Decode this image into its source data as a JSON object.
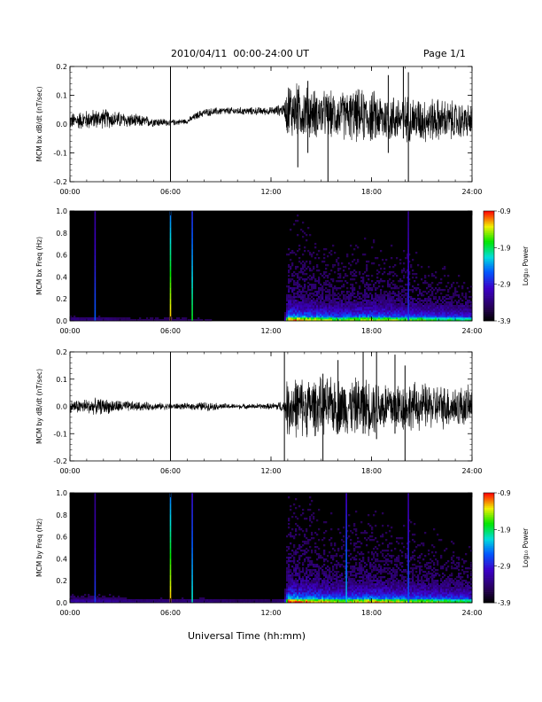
{
  "header": {
    "title": "2010/04/11  00:00-24:00 UT",
    "page_label": "Page 1/1"
  },
  "footer": {
    "xlabel": "Universal Time (hh:mm)"
  },
  "colorbar": {
    "label": "Log₁₀ Power",
    "ticks": [
      "-0.9",
      "-1.9",
      "-2.9",
      "-3.9"
    ],
    "range": [
      -3.9,
      -0.9
    ]
  },
  "chart_data": [
    {
      "type": "line",
      "title": "",
      "ylabel": "MCM bx dB/dt (nT/sec)",
      "xlabel": "",
      "xlim": [
        0,
        24
      ],
      "ylim": [
        -0.2,
        0.2
      ],
      "x_ticks": [
        "00:00",
        "06:00",
        "12:00",
        "18:00",
        "24:00"
      ],
      "y_ticks": [
        "-0.2",
        "-0.1",
        "0.0",
        "0.1",
        "0.2"
      ],
      "series": [
        {
          "x_hours": [
            0,
            1,
            2,
            3,
            4,
            5,
            6,
            7,
            7.6,
            8,
            9,
            10,
            11,
            12,
            12.8,
            13,
            14,
            15,
            16,
            17,
            18,
            19,
            20,
            21,
            22,
            23,
            24
          ],
          "baseline": [
            0.01,
            0.015,
            0.02,
            0.015,
            0.01,
            0.008,
            0.005,
            0.01,
            0.03,
            0.04,
            0.045,
            0.045,
            0.045,
            0.045,
            0.05,
            0.05,
            0.04,
            0.035,
            0.03,
            0.03,
            0.025,
            0.02,
            0.02,
            0.015,
            0.015,
            0.01,
            0.01
          ],
          "envelope": [
            0.025,
            0.03,
            0.03,
            0.025,
            0.02,
            0.015,
            0.01,
            0.008,
            0.012,
            0.012,
            0.012,
            0.012,
            0.012,
            0.012,
            0.02,
            0.09,
            0.08,
            0.07,
            0.07,
            0.08,
            0.08,
            0.075,
            0.07,
            0.07,
            0.065,
            0.06,
            0.05
          ],
          "spikes": [
            {
              "x": 6.0,
              "ymin": -0.2,
              "ymax": 0.2
            },
            {
              "x": 15.4,
              "ymin": -0.2,
              "ymax": 0.08
            },
            {
              "x": 20.2,
              "ymin": -0.2,
              "ymax": 0.18
            },
            {
              "x": 19.9,
              "ymin": -0.05,
              "ymax": 0.2
            },
            {
              "x": 19.0,
              "ymin": -0.1,
              "ymax": 0.17
            },
            {
              "x": 14.2,
              "ymin": -0.1,
              "ymax": 0.15
            },
            {
              "x": 13.6,
              "ymin": -0.15,
              "ymax": 0.12
            }
          ]
        }
      ]
    },
    {
      "type": "heatmap",
      "title": "",
      "ylabel": "MCM bx Freq (Hz)",
      "xlabel": "",
      "xlim": [
        0,
        24
      ],
      "ylim": [
        0,
        1.0
      ],
      "x_ticks": [
        "00:00",
        "06:00",
        "12:00",
        "18:00",
        "24:00"
      ],
      "y_ticks": [
        "0.0",
        "0.2",
        "0.4",
        "0.6",
        "0.8",
        "1.0"
      ],
      "value_range": [
        -3.9,
        -0.9
      ],
      "activity_x_hours": [
        0,
        2,
        4,
        6,
        8,
        10,
        12,
        12.8,
        13,
        14,
        16,
        18,
        20,
        22,
        24
      ],
      "activity_level": [
        0.15,
        0.15,
        0.1,
        0.12,
        0.1,
        0.08,
        0.08,
        0.1,
        0.75,
        0.7,
        0.6,
        0.65,
        0.6,
        0.55,
        0.5
      ],
      "vertical_lines": [
        {
          "x": 1.5,
          "level": 0.45
        },
        {
          "x": 6.0,
          "level": 0.9
        },
        {
          "x": 7.3,
          "level": 0.7
        },
        {
          "x": 20.2,
          "level": 0.4
        }
      ]
    },
    {
      "type": "line",
      "title": "",
      "ylabel": "MCM by dB/dt (nT/sec)",
      "xlabel": "",
      "xlim": [
        0,
        24
      ],
      "ylim": [
        -0.2,
        0.2
      ],
      "x_ticks": [
        "00:00",
        "06:00",
        "12:00",
        "18:00",
        "24:00"
      ],
      "y_ticks": [
        "-0.2",
        "-0.1",
        "0.0",
        "0.1",
        "0.2"
      ],
      "series": [
        {
          "x_hours": [
            0,
            1,
            2,
            3,
            4,
            5,
            6,
            7,
            8,
            9,
            10,
            11,
            12,
            12.8,
            13,
            14,
            15,
            16,
            17,
            18,
            19,
            20,
            21,
            22,
            23,
            24
          ],
          "baseline": [
            0.0,
            0.0,
            0.0,
            0.0,
            0.0,
            0.0,
            0.0,
            0.0,
            0.0,
            0.0,
            0.0,
            0.0,
            0.0,
            0.0,
            0.0,
            0.0,
            0.0,
            0.0,
            0.0,
            0.0,
            0.0,
            0.0,
            0.0,
            0.0,
            0.0,
            0.0
          ],
          "envelope": [
            0.02,
            0.025,
            0.025,
            0.02,
            0.015,
            0.012,
            0.01,
            0.01,
            0.015,
            0.01,
            0.008,
            0.008,
            0.01,
            0.02,
            0.1,
            0.095,
            0.09,
            0.09,
            0.09,
            0.09,
            0.085,
            0.08,
            0.075,
            0.07,
            0.07,
            0.06
          ],
          "spikes": [
            {
              "x": 6.0,
              "ymin": -0.2,
              "ymax": 0.2
            },
            {
              "x": 12.8,
              "ymin": -0.2,
              "ymax": 0.2
            },
            {
              "x": 15.1,
              "ymin": -0.2,
              "ymax": 0.12
            },
            {
              "x": 17.5,
              "ymin": -0.1,
              "ymax": 0.2
            },
            {
              "x": 18.3,
              "ymin": -0.12,
              "ymax": 0.2
            },
            {
              "x": 19.4,
              "ymin": -0.1,
              "ymax": 0.19
            },
            {
              "x": 20.0,
              "ymin": -0.2,
              "ymax": 0.15
            },
            {
              "x": 16.0,
              "ymin": -0.1,
              "ymax": 0.17
            }
          ]
        }
      ]
    },
    {
      "type": "heatmap",
      "title": "",
      "ylabel": "MCM by Freq (Hz)",
      "xlabel": "",
      "xlim": [
        0,
        24
      ],
      "ylim": [
        0,
        1.0
      ],
      "x_ticks": [
        "00:00",
        "06:00",
        "12:00",
        "18:00",
        "24:00"
      ],
      "y_ticks": [
        "0.0",
        "0.2",
        "0.4",
        "0.6",
        "0.8",
        "1.0"
      ],
      "value_range": [
        -3.9,
        -0.9
      ],
      "activity_x_hours": [
        0,
        2,
        4,
        6,
        8,
        10,
        12,
        12.8,
        13,
        14,
        16,
        18,
        20,
        22,
        24
      ],
      "activity_level": [
        0.2,
        0.2,
        0.15,
        0.15,
        0.15,
        0.12,
        0.12,
        0.15,
        0.8,
        0.75,
        0.65,
        0.7,
        0.65,
        0.6,
        0.55
      ],
      "vertical_lines": [
        {
          "x": 1.5,
          "level": 0.4
        },
        {
          "x": 6.0,
          "level": 0.9
        },
        {
          "x": 7.3,
          "level": 0.6
        },
        {
          "x": 16.5,
          "level": 0.55
        },
        {
          "x": 20.2,
          "level": 0.45
        }
      ]
    }
  ]
}
